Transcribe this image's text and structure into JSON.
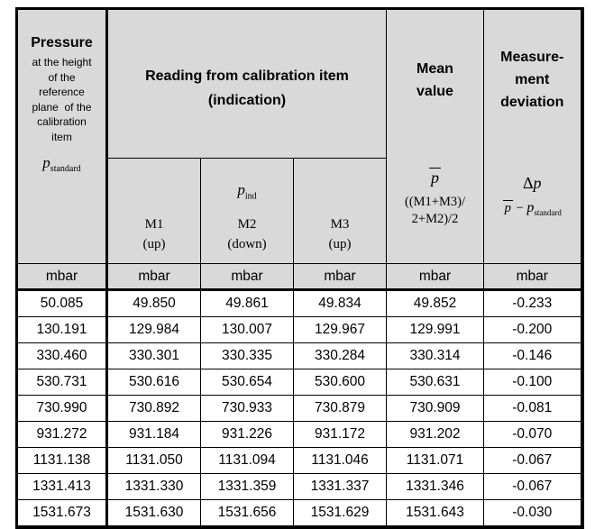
{
  "colors": {
    "header_bg": "#d9d9d9",
    "cell_bg": "#ffffff",
    "border": "#000000",
    "text": "#000000"
  },
  "header": {
    "pressure": {
      "title": "Pressure",
      "desc_lines": [
        "at the height",
        "of the",
        "reference",
        "plane  of the",
        "calibration",
        "item"
      ],
      "symbol": {
        "base": "p",
        "sub": "standard"
      }
    },
    "reading_group": {
      "line1": "Reading from calibration item",
      "line2": "(indication)"
    },
    "indication_symbol": {
      "base": "p",
      "sub": "ind"
    },
    "sub_columns": [
      {
        "label": "M1",
        "direction": "(up)"
      },
      {
        "label": "M2",
        "direction": "(down)"
      },
      {
        "label": "M3",
        "direction": "(up)"
      }
    ],
    "mean": {
      "title_lines": [
        "Mean",
        "value"
      ],
      "symbol": "p",
      "formula_lines": [
        "((M1+M3)/",
        "2+M2)/2"
      ]
    },
    "deviation": {
      "title_lines": [
        "Measure-",
        "ment",
        "deviation"
      ],
      "symbol": {
        "delta": "Δ",
        "base": "p"
      },
      "formula": {
        "lhs": "p",
        "minus": "−",
        "rhs_base": "p",
        "rhs_sub": "standard"
      }
    }
  },
  "units": [
    "mbar",
    "mbar",
    "mbar",
    "mbar",
    "mbar",
    "mbar"
  ],
  "rows": [
    [
      "50.085",
      "49.850",
      "49.861",
      "49.834",
      "49.852",
      "-0.233"
    ],
    [
      "130.191",
      "129.984",
      "130.007",
      "129.967",
      "129.991",
      "-0.200"
    ],
    [
      "330.460",
      "330.301",
      "330.335",
      "330.284",
      "330.314",
      "-0.146"
    ],
    [
      "530.731",
      "530.616",
      "530.654",
      "530.600",
      "530.631",
      "-0.100"
    ],
    [
      "730.990",
      "730.892",
      "730.933",
      "730.879",
      "730.909",
      "-0.081"
    ],
    [
      "931.272",
      "931.184",
      "931.226",
      "931.172",
      "931.202",
      "-0.070"
    ],
    [
      "1131.138",
      "1131.050",
      "1131.094",
      "1131.046",
      "1131.071",
      "-0.067"
    ],
    [
      "1331.413",
      "1331.330",
      "1331.359",
      "1331.337",
      "1331.346",
      "-0.067"
    ],
    [
      "1531.673",
      "1531.630",
      "1531.656",
      "1531.629",
      "1531.643",
      "-0.030"
    ]
  ]
}
